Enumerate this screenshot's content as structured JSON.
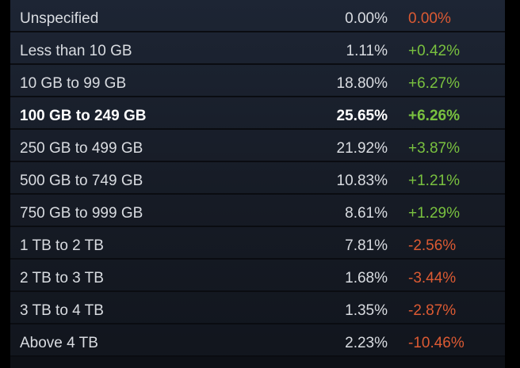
{
  "rows": [
    {
      "label": "Unspecified",
      "percent": "0.00%",
      "change": "0.00%",
      "trend": "neg",
      "bold": false
    },
    {
      "label": "Less than 10 GB",
      "percent": "1.11%",
      "change": "+0.42%",
      "trend": "pos",
      "bold": false
    },
    {
      "label": "10 GB to 99 GB",
      "percent": "18.80%",
      "change": "+6.27%",
      "trend": "pos",
      "bold": false
    },
    {
      "label": "100 GB to 249 GB",
      "percent": "25.65%",
      "change": "+6.26%",
      "trend": "pos",
      "bold": true
    },
    {
      "label": "250 GB to 499 GB",
      "percent": "21.92%",
      "change": "+3.87%",
      "trend": "pos",
      "bold": false
    },
    {
      "label": "500 GB to 749 GB",
      "percent": "10.83%",
      "change": "+1.21%",
      "trend": "pos",
      "bold": false
    },
    {
      "label": "750 GB to 999 GB",
      "percent": "8.61%",
      "change": "+1.29%",
      "trend": "pos",
      "bold": false
    },
    {
      "label": "1 TB to 2 TB",
      "percent": "7.81%",
      "change": "-2.56%",
      "trend": "neg",
      "bold": false
    },
    {
      "label": "2 TB to 3 TB",
      "percent": "1.68%",
      "change": "-3.44%",
      "trend": "neg",
      "bold": false
    },
    {
      "label": "3 TB to 4 TB",
      "percent": "1.35%",
      "change": "-2.87%",
      "trend": "neg",
      "bold": false
    },
    {
      "label": "Above 4 TB",
      "percent": "2.23%",
      "change": "-10.46%",
      "trend": "neg",
      "bold": false
    }
  ],
  "colors": {
    "positive": "#79c13f",
    "negative": "#dc5a33",
    "text": "#d9dce1",
    "panel_background": "#1a212e"
  }
}
